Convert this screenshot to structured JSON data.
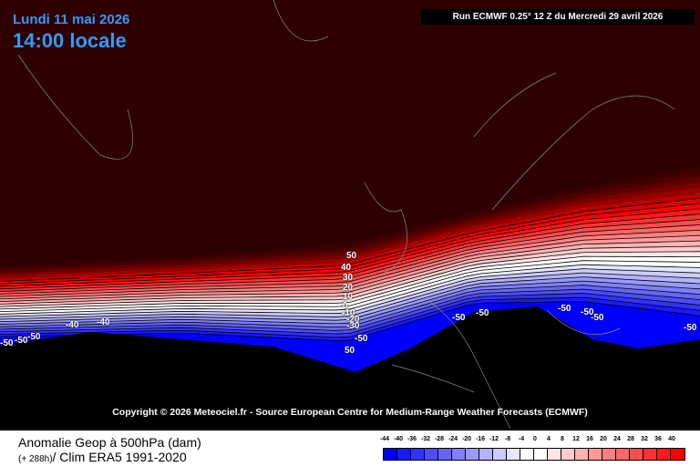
{
  "header": {
    "date": "Lundi 11 mai 2026",
    "time": "14:00 locale",
    "run": "Run ECMWF 0.25° 12 Z du Mercredi 29 avril 2026"
  },
  "copyright": "Copyright © 2026 Meteociel.fr - Source European Centre for Medium-Range Weather Forecasts (ECMWF)",
  "footer": {
    "title": "Anomalie Geop à 500hPa (dam)",
    "lead": "(+ 288h)",
    "clim": "/ Clim ERA5 1991-2020"
  },
  "legend": {
    "labels": [
      "-44",
      "-40",
      "-36",
      "-32",
      "-28",
      "-24",
      "-20",
      "-16",
      "-12",
      "-8",
      "-4",
      "0",
      "4",
      "8",
      "12",
      "16",
      "20",
      "24",
      "28",
      "32",
      "36",
      "40"
    ],
    "colors": [
      "#0000ff",
      "#1a1aff",
      "#3333ff",
      "#4d4dff",
      "#6666ff",
      "#8080ff",
      "#9999ff",
      "#b3b3ff",
      "#ccccff",
      "#e6e6ff",
      "#ffffff",
      "#ffffff",
      "#ffe6e6",
      "#ffcccc",
      "#ffb3b3",
      "#ff9999",
      "#ff8080",
      "#ff6666",
      "#ff4d4d",
      "#ff3333",
      "#ff1a1a",
      "#ff0000"
    ]
  },
  "contour_labels": [
    "50",
    "40",
    "30",
    "20",
    "10",
    "0",
    "-10",
    "-20",
    "-30",
    "-50",
    "-50",
    "-50",
    "-50",
    "50",
    "-50",
    "-50",
    "-50",
    "-50",
    "-40",
    "-40",
    "-50",
    "-50"
  ]
}
